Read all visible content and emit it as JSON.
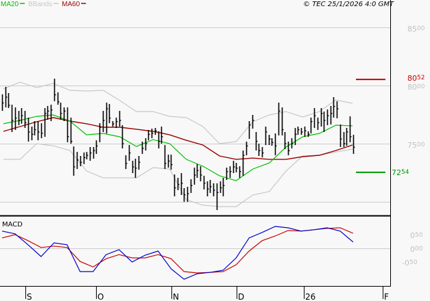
{
  "legend": {
    "ma20": {
      "label": "MA20",
      "color": "#00c000"
    },
    "bbands": {
      "label": "BBands",
      "color": "#c8c8c8"
    },
    "ma60": {
      "label": "MA60",
      "color": "#990000"
    }
  },
  "copyright": "© TEC 25/1/2026 4:0 GMT",
  "macd_label": "MACD",
  "chart_data": [
    {
      "type": "ohlc",
      "ylim": [
        6800,
        8650
      ],
      "yticks": [
        "8500",
        "8000",
        "7500"
      ],
      "grid_values": [
        8500,
        8000,
        7500,
        7000
      ],
      "xticks": [
        "S",
        "O",
        "N",
        "D",
        "26",
        "F"
      ],
      "levels": [
        {
          "label": "8052",
          "value": 8052,
          "color": "#cc0000"
        },
        {
          "label": "7254",
          "value": 7254,
          "color": "#009900"
        }
      ],
      "bars": {
        "high": [
          7924,
          7988,
          7935,
          7835,
          7812,
          7782,
          7806,
          7782,
          7724,
          7647,
          7694,
          7694,
          7676,
          7806,
          7824,
          7835,
          8059,
          7941,
          7853,
          7812,
          7812,
          7724,
          7476,
          7429,
          7394,
          7424,
          7429,
          7471,
          7471,
          7529,
          7676,
          7782,
          7853,
          7841,
          7694,
          7724,
          7782,
          7659,
          7400,
          7488,
          7353,
          7371,
          7394,
          7518,
          7547,
          7618,
          7629,
          7635,
          7606,
          7647,
          7488,
          7406,
          7406,
          7235,
          7206,
          7247,
          7118,
          7129,
          7194,
          7294,
          7324,
          7306,
          7224,
          7176,
          7188,
          7159,
          7159,
          7176,
          7206,
          7294,
          7306,
          7353,
          7335,
          7306,
          7441,
          7518,
          7694,
          7747,
          7600,
          7500,
          7471,
          7647,
          7576,
          7547,
          7588,
          7853,
          7812,
          7600,
          7518,
          7547,
          7635,
          7647,
          7635,
          7647,
          7606,
          7724,
          7806,
          7724,
          7806,
          7776,
          7794,
          7824,
          7900,
          7865,
          7665,
          7600,
          7635,
          7735,
          7576
        ],
        "low": [
          7782,
          7812,
          7806,
          7600,
          7618,
          7659,
          7671,
          7635,
          7518,
          7529,
          7571,
          7529,
          7547,
          7559,
          7706,
          7694,
          7865,
          7835,
          7706,
          7694,
          7512,
          7500,
          7224,
          7282,
          7306,
          7324,
          7365,
          7353,
          7371,
          7412,
          7512,
          7600,
          7588,
          7676,
          7647,
          7635,
          7647,
          7459,
          7282,
          7353,
          7247,
          7206,
          7276,
          7412,
          7441,
          7529,
          7547,
          7576,
          7459,
          7500,
          7282,
          7294,
          7276,
          7047,
          7100,
          7059,
          7000,
          7000,
          7076,
          7147,
          7206,
          7176,
          7106,
          7047,
          7076,
          7047,
          6929,
          7076,
          7047,
          7188,
          7206,
          7247,
          7253,
          7206,
          7224,
          7400,
          7541,
          7629,
          7441,
          7394,
          7382,
          7488,
          7488,
          7482,
          7400,
          7571,
          7571,
          7453,
          7400,
          7459,
          7488,
          7576,
          7576,
          7559,
          7559,
          7588,
          7635,
          7618,
          7647,
          7600,
          7659,
          7665,
          7724,
          7718,
          7471,
          7471,
          7482,
          7512,
          7412
        ],
        "close": [
          7850,
          7900,
          7830,
          7700,
          7720,
          7700,
          7740,
          7680,
          7600,
          7580,
          7620,
          7600,
          7590,
          7760,
          7780,
          7790,
          7920,
          7860,
          7760,
          7780,
          7560,
          7520,
          7300,
          7360,
          7340,
          7380,
          7400,
          7420,
          7440,
          7480,
          7640,
          7700,
          7800,
          7720,
          7670,
          7690,
          7700,
          7500,
          7330,
          7420,
          7300,
          7290,
          7340,
          7460,
          7500,
          7580,
          7590,
          7610,
          7520,
          7560,
          7330,
          7350,
          7320,
          7120,
          7150,
          7160,
          7060,
          7070,
          7140,
          7230,
          7270,
          7230,
          7160,
          7110,
          7130,
          7100,
          7080,
          7120,
          7140,
          7260,
          7260,
          7300,
          7290,
          7260,
          7400,
          7480,
          7660,
          7700,
          7520,
          7440,
          7420,
          7600,
          7540,
          7510,
          7480,
          7780,
          7620,
          7500,
          7440,
          7500,
          7580,
          7620,
          7600,
          7610,
          7580,
          7690,
          7740,
          7680,
          7760,
          7700,
          7740,
          7760,
          7820,
          7800,
          7540,
          7500,
          7600,
          7560,
          7470
        ]
      },
      "series": [
        {
          "name": "MA20",
          "values": [
            7671,
            7700,
            7735,
            7747,
            7694,
            7576,
            7588,
            7559,
            7476,
            7535,
            7500,
            7365,
            7306,
            7224,
            7182,
            7282,
            7335,
            7471,
            7559,
            7588,
            7659,
            7653
          ]
        },
        {
          "name": "MA60",
          "values": [
            7606,
            7647,
            7688,
            7724,
            7694,
            7671,
            7641,
            7641,
            7624,
            7606,
            7576,
            7529,
            7488,
            7394,
            7365,
            7376,
            7365,
            7365,
            7388,
            7400,
            7441,
            7488
          ]
        },
        {
          "name": "BBands",
          "upper": [
            7971,
            8029,
            7982,
            8018,
            7959,
            7953,
            7959,
            7871,
            7776,
            7776,
            7735,
            7724,
            7647,
            7500,
            7518,
            7688,
            7747,
            7776,
            7729,
            7776,
            7876,
            7847
          ],
          "lower": [
            7365,
            7365,
            7500,
            7482,
            7441,
            7265,
            7206,
            7206,
            7206,
            7294,
            7282,
            7018,
            6971,
            6959,
            6959,
            7059,
            7088,
            7265,
            7394,
            7400,
            7429,
            7453
          ]
        }
      ]
    },
    {
      "type": "line",
      "title": "MACD",
      "ylim": [
        -1.35,
        1.2
      ],
      "yticks": [
        "0.50",
        "0.00",
        "-0.50"
      ],
      "grid_values": [
        0
      ],
      "series": [
        {
          "color": "#0000cc",
          "values": [
            0.63,
            0.53,
            0.13,
            -0.3,
            0.2,
            0.13,
            -0.85,
            -0.85,
            -0.23,
            -0.05,
            -0.5,
            -0.25,
            -0.1,
            -0.75,
            -1.13,
            -0.93,
            -0.88,
            -0.8,
            -0.35,
            0.38,
            0.58,
            0.8,
            0.75,
            0.63,
            0.68,
            0.75,
            0.63,
            0.23
          ]
        },
        {
          "color": "#cc0000",
          "values": [
            0.38,
            0.5,
            0.28,
            0.03,
            0.08,
            0.03,
            -0.48,
            -0.68,
            -0.38,
            -0.23,
            -0.35,
            -0.35,
            -0.23,
            -0.38,
            -0.85,
            -0.9,
            -0.88,
            -0.85,
            -0.6,
            -0.1,
            0.28,
            0.45,
            0.65,
            0.63,
            0.68,
            0.73,
            0.75,
            0.55
          ]
        }
      ]
    }
  ]
}
